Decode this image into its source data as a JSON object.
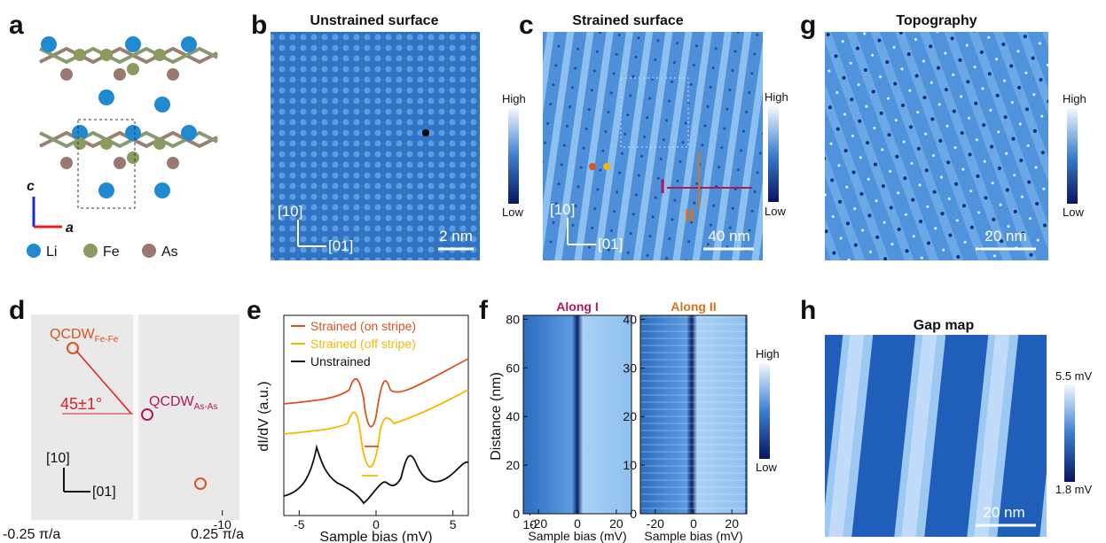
{
  "panels": {
    "a": {
      "label": "a",
      "axes": [
        "c",
        "a"
      ],
      "legend": [
        "Li",
        "Fe",
        "As"
      ]
    },
    "b": {
      "label": "b",
      "title": "Unstrained surface",
      "colorbar": [
        "High",
        "Low"
      ],
      "directions": [
        "[10]",
        "[01]"
      ],
      "scale_bar": "2 nm"
    },
    "c": {
      "label": "c",
      "title": "Strained surface",
      "colorbar": [
        "High",
        "Low"
      ],
      "directions": [
        "[10]",
        "[01]"
      ],
      "scale_bar": "40 nm",
      "cuts": [
        "I",
        "II"
      ]
    },
    "g": {
      "label": "g",
      "title": "Topography",
      "colorbar": [
        "High",
        "Low"
      ],
      "scale_bar": "20 nm"
    },
    "d": {
      "label": "d",
      "peaks": [
        {
          "name": "QCDW",
          "sub": "Fe-Fe"
        },
        {
          "name": "QCDW",
          "sub": "As-As"
        }
      ],
      "angle": "45±1°",
      "directions": [
        "[10]",
        "[01]"
      ],
      "x_range": [
        "-0.25 π/a",
        "0.25 π/a"
      ]
    },
    "e": {
      "label": "e",
      "legend": [
        "Strained (on stripe)",
        "Strained (off stripe)",
        "Unstrained"
      ],
      "y_label": "dI/dV (a.u.)",
      "x_label": "Sample bias (mV)",
      "x_ticks": [
        -10,
        -5,
        0,
        5,
        10
      ]
    },
    "f": {
      "label": "f",
      "y_label": "Distance (nm)",
      "plots": [
        {
          "title": "Along I",
          "y_ticks": [
            0,
            20,
            40,
            60,
            80
          ],
          "x_ticks": [
            -20,
            0,
            20
          ],
          "x_label": "Sample bias (mV)"
        },
        {
          "title": "Along II",
          "y_ticks": [
            0,
            10,
            20,
            30,
            40
          ],
          "x_ticks": [
            -20,
            0,
            20
          ],
          "x_label": "Sample bias (mV)"
        }
      ],
      "colorbar": [
        "High",
        "Low"
      ]
    },
    "h": {
      "label": "h",
      "title": "Gap map",
      "colorbar": [
        "5.5 mV",
        "1.8 mV"
      ],
      "scale_bar": "20 nm"
    }
  }
}
